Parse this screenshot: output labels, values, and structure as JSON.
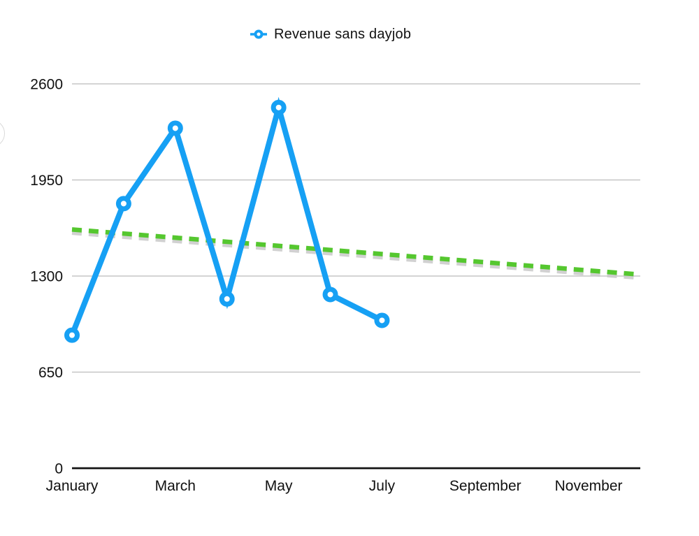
{
  "legend": {
    "label": "Revenue sans dayjob"
  },
  "colors": {
    "series_blue": "#16A0F4",
    "trend_green": "#55C72F",
    "trend_shadow": "#c9c9c9",
    "gridline": "#c6c6c6",
    "axis": "#141414",
    "text": "#111111",
    "background": "#FFFFFF"
  },
  "chart_data": {
    "type": "line",
    "title": "",
    "legend_position": "top-center",
    "grid": true,
    "x_axis": {
      "tick_labels": [
        "January",
        "March",
        "May",
        "July",
        "September",
        "November"
      ],
      "tick_month_positions": [
        0,
        2,
        4,
        6,
        8,
        10
      ],
      "n_month_slots": 12
    },
    "y_axis": {
      "ticks": [
        0,
        650,
        1300,
        1950,
        2600
      ],
      "min": 0,
      "max": 2600
    },
    "series": [
      {
        "name": "Revenue sans dayjob",
        "marker": "open-circle",
        "months": [
          "January",
          "February",
          "March",
          "April",
          "May",
          "June",
          "July"
        ],
        "month_positions": [
          0,
          1,
          2,
          3,
          4,
          5,
          6
        ],
        "values": [
          900,
          1790,
          2300,
          1145,
          2440,
          1175,
          1000
        ]
      }
    ],
    "trendline": {
      "style": "dashed",
      "start_month_position": 0,
      "end_month_position": 11,
      "start_value": 1615,
      "end_value": 1310
    }
  }
}
